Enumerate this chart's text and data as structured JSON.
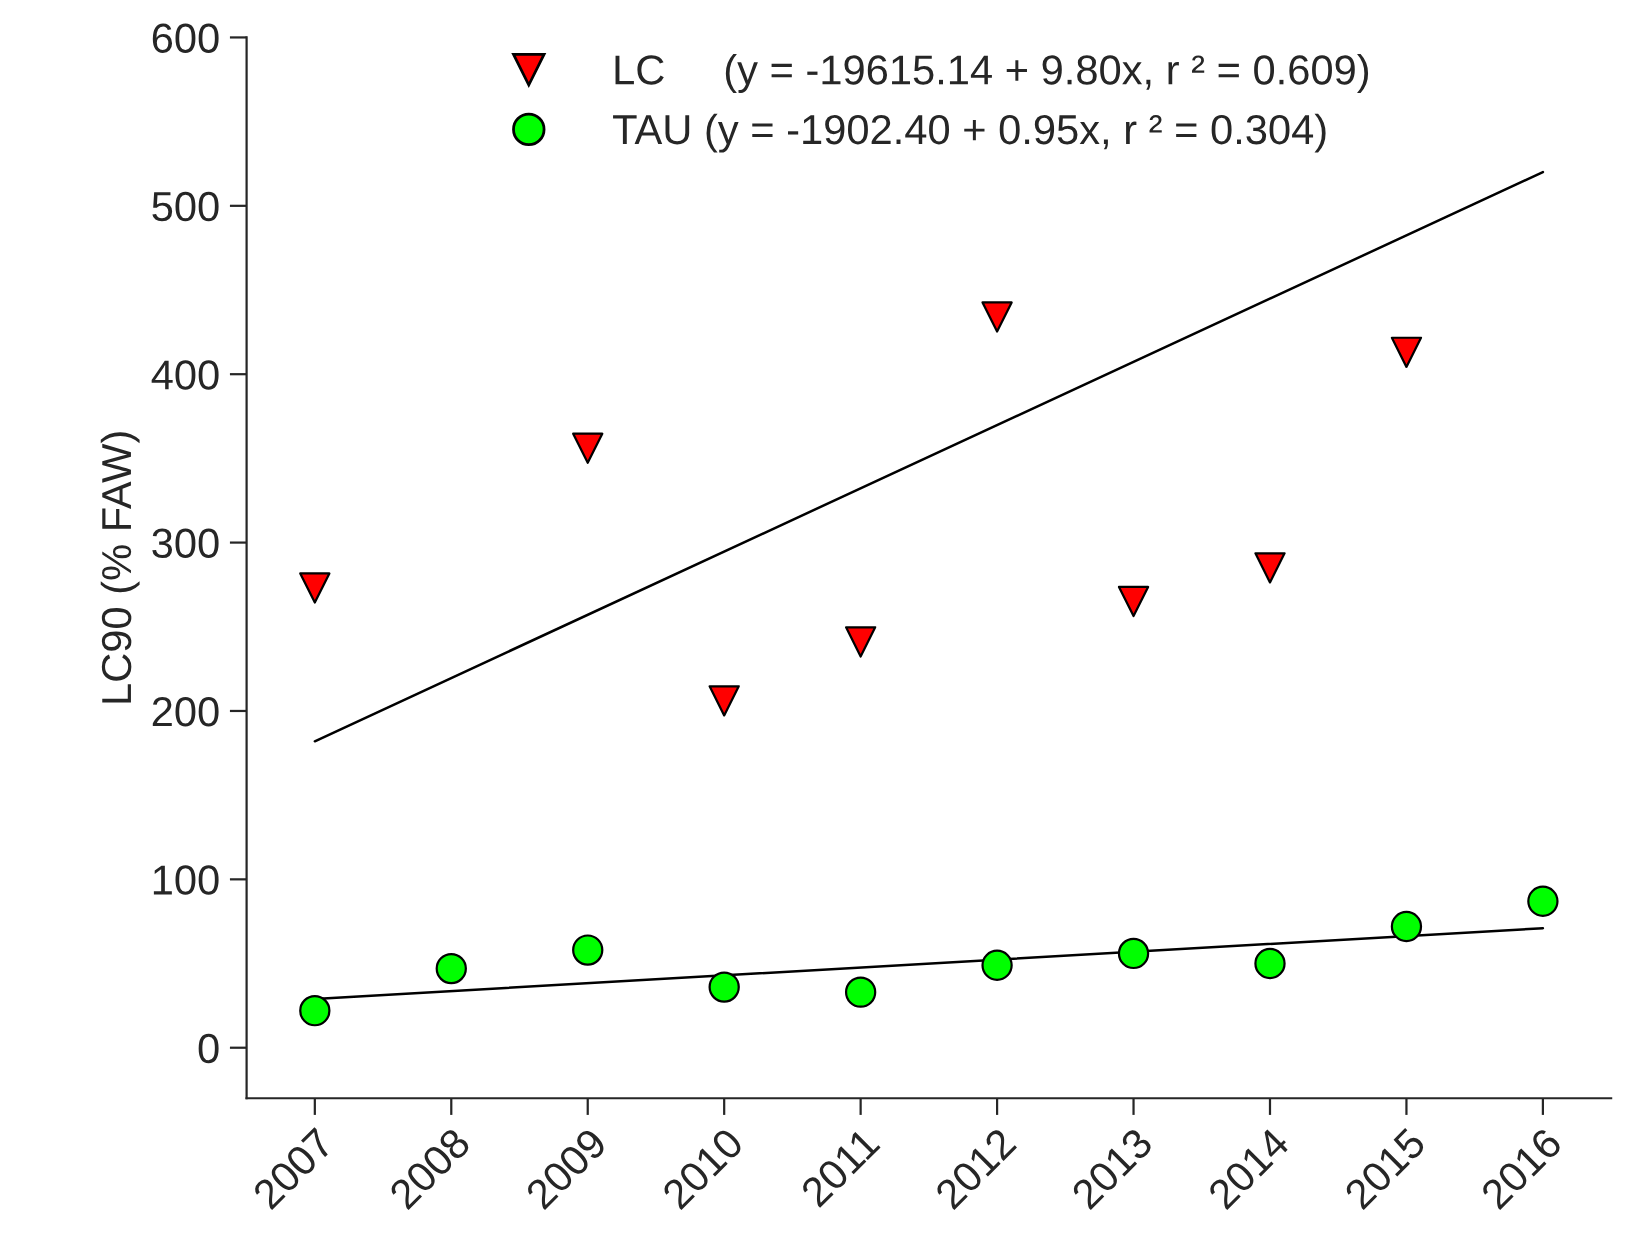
{
  "chart_data": {
    "type": "scatter",
    "ylabel": "LC90 (% FAW)",
    "x": [
      2007,
      2008,
      2009,
      2010,
      2011,
      2012,
      2013,
      2014,
      2015,
      2016
    ],
    "series": [
      {
        "name": "LC     (y = -19615.14 + 9.80x, r ² = 0.609)",
        "color": "#ff0000",
        "marker": "triangle",
        "x": [
          2007,
          2009,
          2010,
          2011,
          2012,
          2013,
          2014,
          2015
        ],
        "values": [
          273,
          356,
          206,
          241,
          434,
          265,
          285,
          413
        ]
      },
      {
        "name": "TAU (y = -1902.40 + 0.95x, r ² = 0.304)",
        "color": "#00ff00",
        "marker": "circle",
        "values": [
          22,
          47,
          58,
          36,
          33,
          49,
          56,
          50,
          72,
          87
        ]
      },
      {
        "type": "line",
        "color": "#000000",
        "x": [
          2007,
          2016
        ],
        "values": [
          182,
          520
        ]
      },
      {
        "type": "line",
        "color": "#000000",
        "x": [
          2007,
          2016
        ],
        "values": [
          29,
          71
        ]
      }
    ],
    "xlim": [
      2006.5,
      2016.5
    ],
    "xticks": [
      2007,
      2008,
      2009,
      2010,
      2011,
      2012,
      2013,
      2014,
      2015,
      2016
    ],
    "ylim": [
      -30,
      600
    ],
    "yticks": [
      0,
      100,
      200,
      300,
      400,
      500,
      600
    ],
    "grid": false,
    "legend": "top"
  }
}
